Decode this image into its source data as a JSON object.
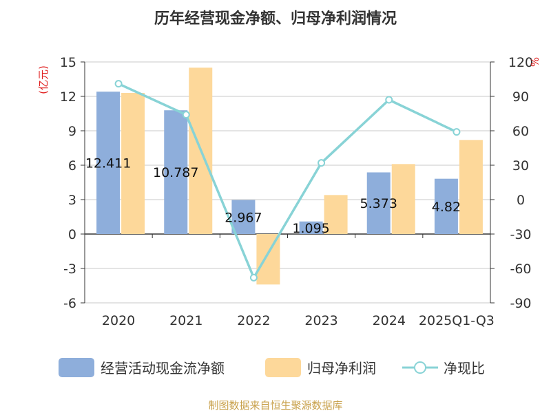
{
  "chart_data": {
    "type": "bar+line",
    "title": "历年经营现金净额、归母净利润情况",
    "categories": [
      "2020",
      "2021",
      "2022",
      "2023",
      "2024",
      "2025Q1-Q3"
    ],
    "left_axis": {
      "unit": "(亿元)",
      "min": -6,
      "max": 15,
      "ticks": [
        "15",
        "12",
        "9",
        "6",
        "3",
        "0",
        "-3",
        "-6"
      ]
    },
    "right_axis": {
      "unit": "%",
      "min": -90,
      "max": 120,
      "ticks": [
        "120",
        "90",
        "60",
        "30",
        "0",
        "-30",
        "-60",
        "-90"
      ]
    },
    "series": [
      {
        "name": "经营活动现金流净额",
        "type": "bar",
        "axis": "left",
        "color": "#8eaedb",
        "values": [
          12.411,
          10.787,
          2.967,
          1.095,
          5.373,
          4.82
        ],
        "labels": [
          "12.411",
          "10.787",
          "2.967",
          "1.095",
          "5.373",
          "4.82"
        ]
      },
      {
        "name": "归母净利润",
        "type": "bar",
        "axis": "left",
        "color": "#fdd89a",
        "values": [
          12.3,
          14.5,
          -4.4,
          3.4,
          6.1,
          8.2
        ]
      },
      {
        "name": "净现比",
        "type": "line",
        "axis": "right",
        "color": "#88d3d6",
        "values": [
          101,
          74,
          -68,
          32,
          87,
          59
        ]
      }
    ],
    "legend_position": "bottom",
    "grid": true
  },
  "source": "制图数据来自恒生聚源数据库"
}
